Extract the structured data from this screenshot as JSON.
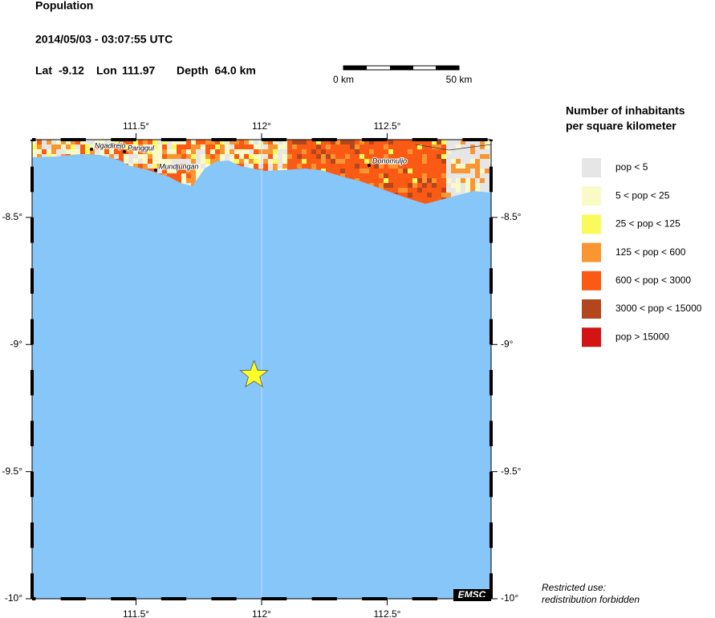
{
  "header": {
    "title": "Population",
    "datetime": "2014/05/03 - 03:07:55 UTC"
  },
  "event": {
    "lat_label": "Lat",
    "lat": -9.12,
    "lon_label": "Lon",
    "lon": 111.97,
    "depth": "Depth  64.0 km"
  },
  "scale_bar": {
    "start": "0 km",
    "end": "50 km"
  },
  "map": {
    "lonlim": [
      111.086,
      112.914
    ],
    "latlim": [
      -8.194,
      -10
    ],
    "lon_ticks": [
      {
        "value": 111.5,
        "label": "111.5°"
      },
      {
        "value": 112,
        "label": "112°"
      },
      {
        "value": 112.5,
        "label": "112.5°"
      }
    ],
    "lat_ticks": [
      {
        "value": -8.5,
        "label": "-8.5°"
      },
      {
        "value": -9,
        "label": "-9°"
      },
      {
        "value": -9.5,
        "label": "-9.5°"
      },
      {
        "value": -10,
        "label": "-10°"
      }
    ],
    "cities": [
      "Ngadirejo",
      "Panggul",
      "Mundjungan",
      "Donomuljo"
    ]
  },
  "legend": {
    "title": [
      "Number of inhabitants",
      "per square kilometer"
    ],
    "items": [
      {
        "label": "pop < 5",
        "color": "#e6e6e6"
      },
      {
        "label": "5 < pop < 25",
        "color": "#fafac8"
      },
      {
        "label": "25 < pop < 125",
        "color": "#fafa5a"
      },
      {
        "label": "125 < pop < 600",
        "color": "#fa9632"
      },
      {
        "label": "600 < pop < 3000",
        "color": "#fa5a14"
      },
      {
        "label": "3000 < pop < 15000",
        "color": "#b4461e"
      },
      {
        "label": "pop > 15000",
        "color": "#d21414"
      }
    ]
  },
  "footer": {
    "badge": "EMSC",
    "notice": [
      "Restricted use:",
      "redistribution forbidden"
    ]
  }
}
